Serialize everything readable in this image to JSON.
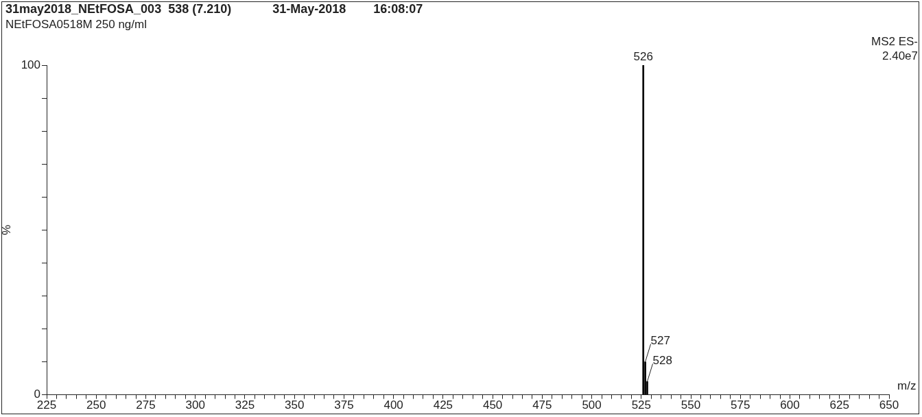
{
  "chart_data": {
    "type": "bar",
    "title": "31may2018_NEtFOSA_003  538 (7.210)            31-May-2018        16:08:07",
    "subtitle": "NEtFOSA0518M 250 ng/ml",
    "xlabel": "m/z",
    "ylabel": "%",
    "x": [
      526,
      527,
      528
    ],
    "values": [
      100,
      10,
      4
    ],
    "color": "#000000",
    "xlim": [
      225,
      650
    ],
    "xticks": [
      225,
      {
        "value": 230,
        "label": null
      },
      {
        "value": 235,
        "label": null
      },
      {
        "value": 240,
        "label": null
      },
      {
        "value": 245,
        "label": null
      },
      250,
      {
        "value": 255,
        "label": null
      },
      {
        "value": 260,
        "label": null
      },
      {
        "value": 265,
        "label": null
      },
      {
        "value": 270,
        "label": null
      },
      275,
      {
        "value": 280,
        "label": null
      },
      {
        "value": 285,
        "label": null
      },
      {
        "value": 290,
        "label": null
      },
      {
        "value": 295,
        "label": null
      },
      300,
      {
        "value": 305,
        "label": null
      },
      {
        "value": 310,
        "label": null
      },
      {
        "value": 315,
        "label": null
      },
      {
        "value": 320,
        "label": null
      },
      325,
      {
        "value": 330,
        "label": null
      },
      {
        "value": 335,
        "label": null
      },
      {
        "value": 340,
        "label": null
      },
      {
        "value": 345,
        "label": null
      },
      350,
      {
        "value": 355,
        "label": null
      },
      {
        "value": 360,
        "label": null
      },
      {
        "value": 365,
        "label": null
      },
      {
        "value": 370,
        "label": null
      },
      375,
      {
        "value": 380,
        "label": null
      },
      {
        "value": 385,
        "label": null
      },
      {
        "value": 390,
        "label": null
      },
      {
        "value": 395,
        "label": null
      },
      400,
      {
        "value": 405,
        "label": null
      },
      {
        "value": 410,
        "label": null
      },
      {
        "value": 415,
        "label": null
      },
      {
        "value": 420,
        "label": null
      },
      425,
      {
        "value": 430,
        "label": null
      },
      {
        "value": 435,
        "label": null
      },
      {
        "value": 440,
        "label": null
      },
      {
        "value": 445,
        "label": null
      },
      450,
      {
        "value": 455,
        "label": null
      },
      {
        "value": 460,
        "label": null
      },
      {
        "value": 465,
        "label": null
      },
      {
        "value": 470,
        "label": null
      },
      475,
      {
        "value": 480,
        "label": null
      },
      {
        "value": 485,
        "label": null
      },
      {
        "value": 490,
        "label": null
      },
      {
        "value": 495,
        "label": null
      },
      500,
      {
        "value": 505,
        "label": null
      },
      {
        "value": 510,
        "label": null
      },
      {
        "value": 515,
        "label": null
      },
      {
        "value": 520,
        "label": null
      },
      525,
      {
        "value": 530,
        "label": null
      },
      {
        "value": 535,
        "label": null
      },
      {
        "value": 540,
        "label": null
      },
      {
        "value": 545,
        "label": null
      },
      550,
      {
        "value": 555,
        "label": null
      },
      {
        "value": 560,
        "label": null
      },
      {
        "value": 565,
        "label": null
      },
      {
        "value": 570,
        "label": null
      },
      575,
      {
        "value": 580,
        "label": null
      },
      {
        "value": 585,
        "label": null
      },
      {
        "value": 590,
        "label": null
      },
      {
        "value": 595,
        "label": null
      },
      600,
      {
        "value": 605,
        "label": null
      },
      {
        "value": 610,
        "label": null
      },
      {
        "value": 615,
        "label": null
      },
      {
        "value": 620,
        "label": null
      },
      625,
      {
        "value": 630,
        "label": null
      },
      {
        "value": 635,
        "label": null
      },
      {
        "value": 640,
        "label": null
      },
      {
        "value": 645,
        "label": null
      },
      650
    ],
    "ylim": [
      0,
      100
    ],
    "yticks": [
      0,
      {
        "value": 10,
        "label": null
      },
      {
        "value": 20,
        "label": null
      },
      {
        "value": 30,
        "label": null
      },
      {
        "value": 40,
        "label": null
      },
      {
        "value": 50,
        "label": null
      },
      {
        "value": 60,
        "label": null
      },
      {
        "value": 70,
        "label": null
      },
      {
        "value": 80,
        "label": null
      },
      {
        "value": 90,
        "label": null
      },
      100
    ],
    "annotations": [
      {
        "text": "526",
        "x": 526,
        "y": 100
      },
      {
        "text": "527",
        "x": 527,
        "y": 10
      },
      {
        "text": "528",
        "x": 528,
        "y": 4
      },
      "MS2 ES-",
      "2.40e7"
    ]
  }
}
